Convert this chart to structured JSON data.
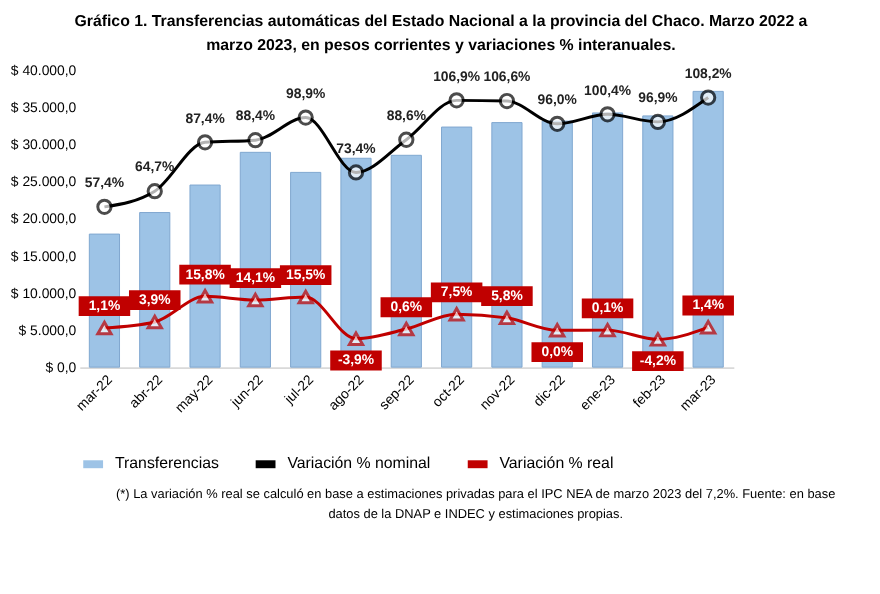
{
  "chart_data": {
    "type": "bar",
    "title": "Gráfico 1. Transferencias automáticas del Estado Nacional a la provincia del Chaco. Marzo 2022 a marzo 2023, en pesos corrientes y variaciones % interanuales.",
    "categories": [
      "mar-22",
      "abr-22",
      "may-22",
      "jun-22",
      "jul-22",
      "ago-22",
      "sep-22",
      "oct-22",
      "nov-22",
      "dic-22",
      "ene-23",
      "feb-23",
      "mar-23"
    ],
    "series": [
      {
        "name": "Transferencias",
        "color": "#9dc3e6",
        "values": [
          17900,
          20800,
          24500,
          28900,
          26200,
          28100,
          28500,
          32300,
          32900,
          33100,
          34200,
          33800,
          37100
        ]
      },
      {
        "name": "Variación % nominal",
        "type": "line",
        "axis": "y2",
        "marker": "circle",
        "color": "#000000",
        "values": [
          57.4,
          64.7,
          87.4,
          88.4,
          98.9,
          73.4,
          88.6,
          106.9,
          106.6,
          96.0,
          100.4,
          96.9,
          108.2
        ],
        "value_labels": [
          "57,4%",
          "64,7%",
          "87,4%",
          "88,4%",
          "98,9%",
          "73,4%",
          "88,6%",
          "106,9%",
          "106,6%",
          "96,0%",
          "100,4%",
          "96,9%",
          "108,2%"
        ]
      },
      {
        "name": "Variación % real",
        "type": "line",
        "axis": "y2",
        "marker": "triangle",
        "color": "#c00000",
        "values": [
          1.1,
          3.9,
          15.8,
          14.1,
          15.5,
          -3.9,
          0.6,
          7.5,
          5.8,
          0.0,
          0.1,
          -4.2,
          1.4
        ],
        "value_labels": [
          "1,1%",
          "3,9%",
          "15,8%",
          "14,1%",
          "15,5%",
          "-3,9%",
          "0,6%",
          "7,5%",
          "5,8%",
          "0,0%",
          "0,1%",
          "-4,2%",
          "1,4%"
        ]
      }
    ],
    "ylim": [
      0,
      40000
    ],
    "yticks": [
      {
        "value": 0,
        "label": "$ 0,0"
      },
      {
        "value": 5000,
        "label": "$ 5.000,0"
      },
      {
        "value": 10000,
        "label": "$ 10.000,0"
      },
      {
        "value": 15000,
        "label": "$ 15.000,0"
      },
      {
        "value": 20000,
        "label": "$ 20.000,0"
      },
      {
        "value": 25000,
        "label": "$ 25.000,0"
      },
      {
        "value": 30000,
        "label": "$ 30.000,0"
      },
      {
        "value": 35000,
        "label": "$ 35.000,0"
      },
      {
        "value": 40000,
        "label": "$ 40.000,0"
      }
    ],
    "tick_labels": "xy",
    "legend": "bottom",
    "grid": false,
    "annotations": [
      "(*) La variación % real se calculó en base a estimaciones privadas para el IPC NEA de marzo 2023 del 7,2%. Fuente: en base datos de la DNAP e INDEC y estimaciones propias."
    ]
  }
}
